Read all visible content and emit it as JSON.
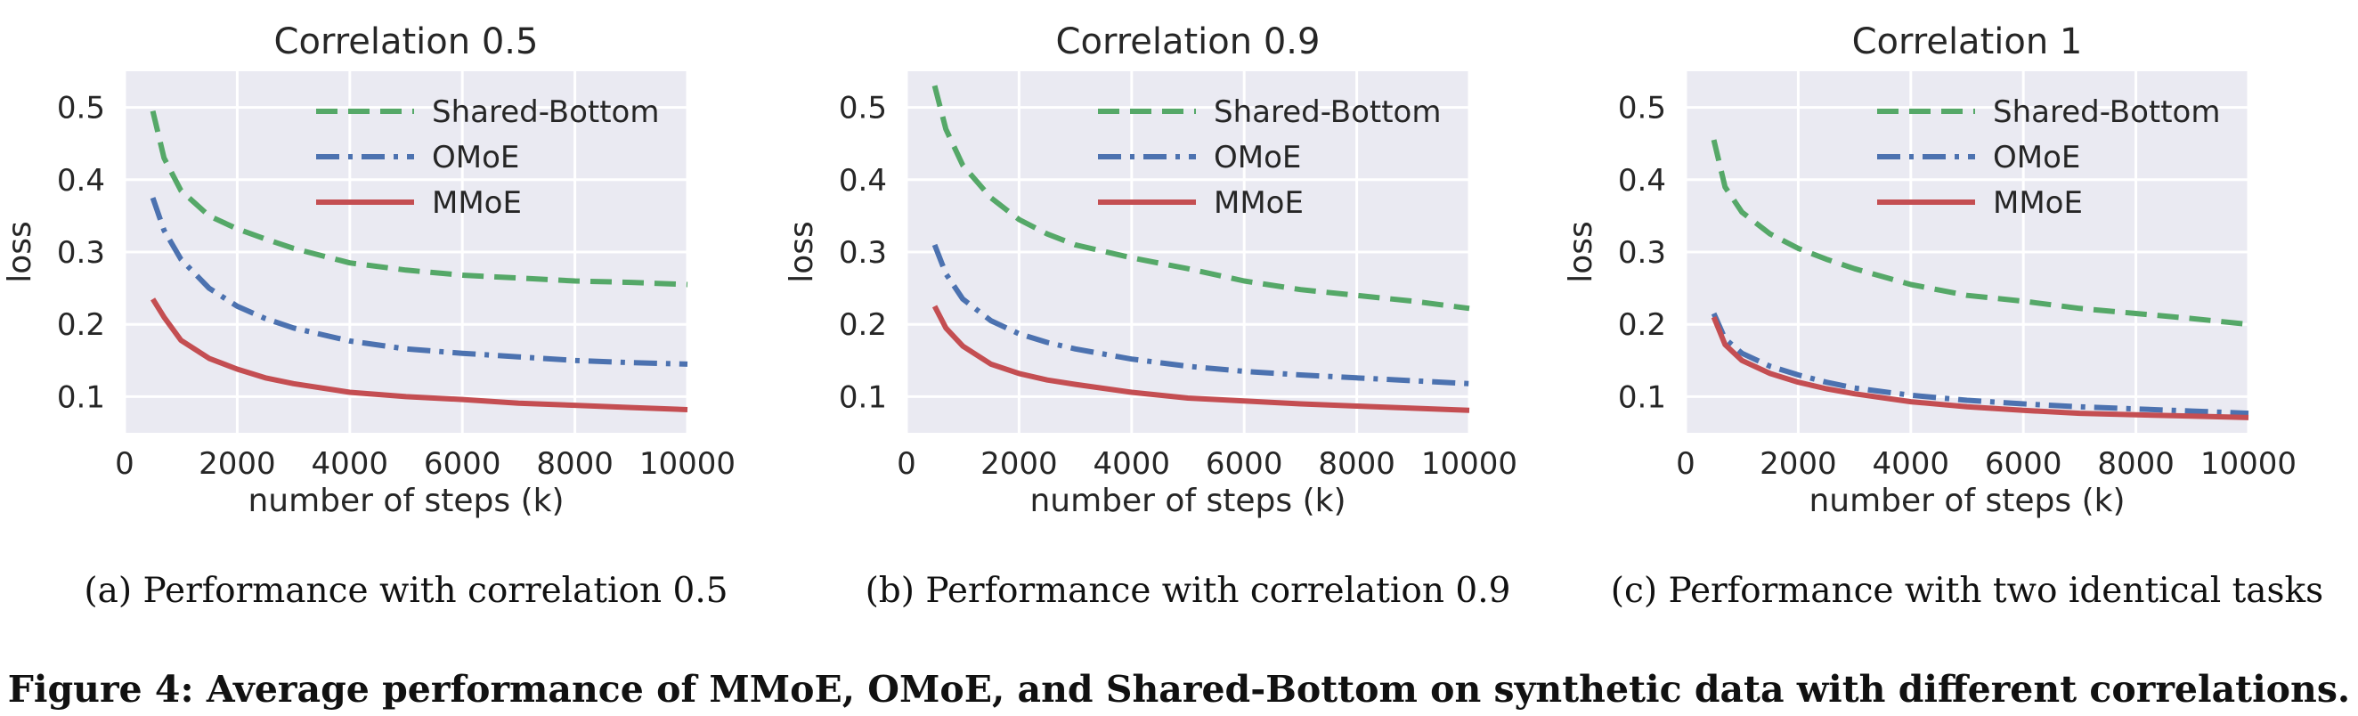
{
  "figure_caption": "Figure 4: Average performance of MMoE, OMoE, and Shared-Bottom on synthetic data with different correlations.",
  "colors": {
    "plot_bg": "#eaeaf2",
    "grid": "#ffffff",
    "shared_bottom": "#55a868",
    "omoe": "#4c72b0",
    "mmoe": "#c44e52"
  },
  "chart_data": [
    {
      "type": "line",
      "title": "Correlation 0.5",
      "caption": "(a) Performance with correlation 0.5",
      "xlabel": "number of steps (k)",
      "ylabel": "loss",
      "xlim": [
        0,
        10000
      ],
      "ylim": [
        0.05,
        0.55
      ],
      "xticks": [
        0,
        2000,
        4000,
        6000,
        8000,
        10000
      ],
      "yticks": [
        0.1,
        0.2,
        0.3,
        0.4,
        0.5
      ],
      "grid": true,
      "legend": "top-right",
      "x": [
        500,
        700,
        1000,
        1500,
        2000,
        2500,
        3000,
        4000,
        5000,
        6000,
        7000,
        8000,
        9000,
        10000
      ],
      "series": [
        {
          "name": "Shared-Bottom",
          "style": "dashed",
          "values": [
            0.495,
            0.43,
            0.385,
            0.35,
            0.332,
            0.318,
            0.305,
            0.285,
            0.275,
            0.268,
            0.264,
            0.26,
            0.258,
            0.255
          ]
        },
        {
          "name": "OMoE",
          "style": "dashdot",
          "values": [
            0.375,
            0.33,
            0.29,
            0.25,
            0.225,
            0.208,
            0.195,
            0.177,
            0.166,
            0.16,
            0.155,
            0.15,
            0.147,
            0.145
          ]
        },
        {
          "name": "MMoE",
          "style": "solid",
          "values": [
            0.235,
            0.21,
            0.178,
            0.153,
            0.138,
            0.126,
            0.118,
            0.106,
            0.1,
            0.096,
            0.091,
            0.088,
            0.085,
            0.082
          ]
        }
      ]
    },
    {
      "type": "line",
      "title": "Correlation 0.9",
      "caption": "(b) Performance with correlation 0.9",
      "xlabel": "number of steps (k)",
      "ylabel": "loss",
      "xlim": [
        0,
        10000
      ],
      "ylim": [
        0.05,
        0.55
      ],
      "xticks": [
        0,
        2000,
        4000,
        6000,
        8000,
        10000
      ],
      "yticks": [
        0.1,
        0.2,
        0.3,
        0.4,
        0.5
      ],
      "grid": true,
      "legend": "top-right",
      "x": [
        500,
        700,
        1000,
        1500,
        2000,
        2500,
        3000,
        4000,
        5000,
        6000,
        7000,
        8000,
        9000,
        10000
      ],
      "series": [
        {
          "name": "Shared-Bottom",
          "style": "dashed",
          "values": [
            0.53,
            0.47,
            0.42,
            0.375,
            0.345,
            0.325,
            0.31,
            0.292,
            0.277,
            0.26,
            0.248,
            0.24,
            0.232,
            0.222
          ]
        },
        {
          "name": "OMoE",
          "style": "dashdot",
          "values": [
            0.31,
            0.27,
            0.235,
            0.205,
            0.187,
            0.175,
            0.166,
            0.152,
            0.142,
            0.135,
            0.13,
            0.126,
            0.122,
            0.118
          ]
        },
        {
          "name": "MMoE",
          "style": "solid",
          "values": [
            0.225,
            0.195,
            0.17,
            0.145,
            0.132,
            0.123,
            0.117,
            0.106,
            0.098,
            0.094,
            0.09,
            0.087,
            0.084,
            0.081
          ]
        }
      ]
    },
    {
      "type": "line",
      "title": "Correlation 1",
      "caption": "(c) Performance with two identical tasks",
      "xlabel": "number of steps (k)",
      "ylabel": "loss",
      "xlim": [
        0,
        10000
      ],
      "ylim": [
        0.05,
        0.55
      ],
      "xticks": [
        0,
        2000,
        4000,
        6000,
        8000,
        10000
      ],
      "yticks": [
        0.1,
        0.2,
        0.3,
        0.4,
        0.5
      ],
      "grid": true,
      "legend": "top-right",
      "x": [
        500,
        700,
        1000,
        1500,
        2000,
        2500,
        3000,
        4000,
        5000,
        6000,
        7000,
        8000,
        9000,
        10000
      ],
      "series": [
        {
          "name": "Shared-Bottom",
          "style": "dashed",
          "values": [
            0.455,
            0.39,
            0.355,
            0.325,
            0.305,
            0.29,
            0.277,
            0.255,
            0.24,
            0.232,
            0.222,
            0.215,
            0.208,
            0.2
          ]
        },
        {
          "name": "OMoE",
          "style": "dashdot",
          "values": [
            0.215,
            0.18,
            0.16,
            0.142,
            0.13,
            0.12,
            0.112,
            0.102,
            0.095,
            0.09,
            0.086,
            0.083,
            0.08,
            0.077
          ]
        },
        {
          "name": "MMoE",
          "style": "solid",
          "values": [
            0.21,
            0.172,
            0.15,
            0.132,
            0.12,
            0.111,
            0.104,
            0.093,
            0.086,
            0.081,
            0.077,
            0.075,
            0.073,
            0.071
          ]
        }
      ]
    }
  ]
}
